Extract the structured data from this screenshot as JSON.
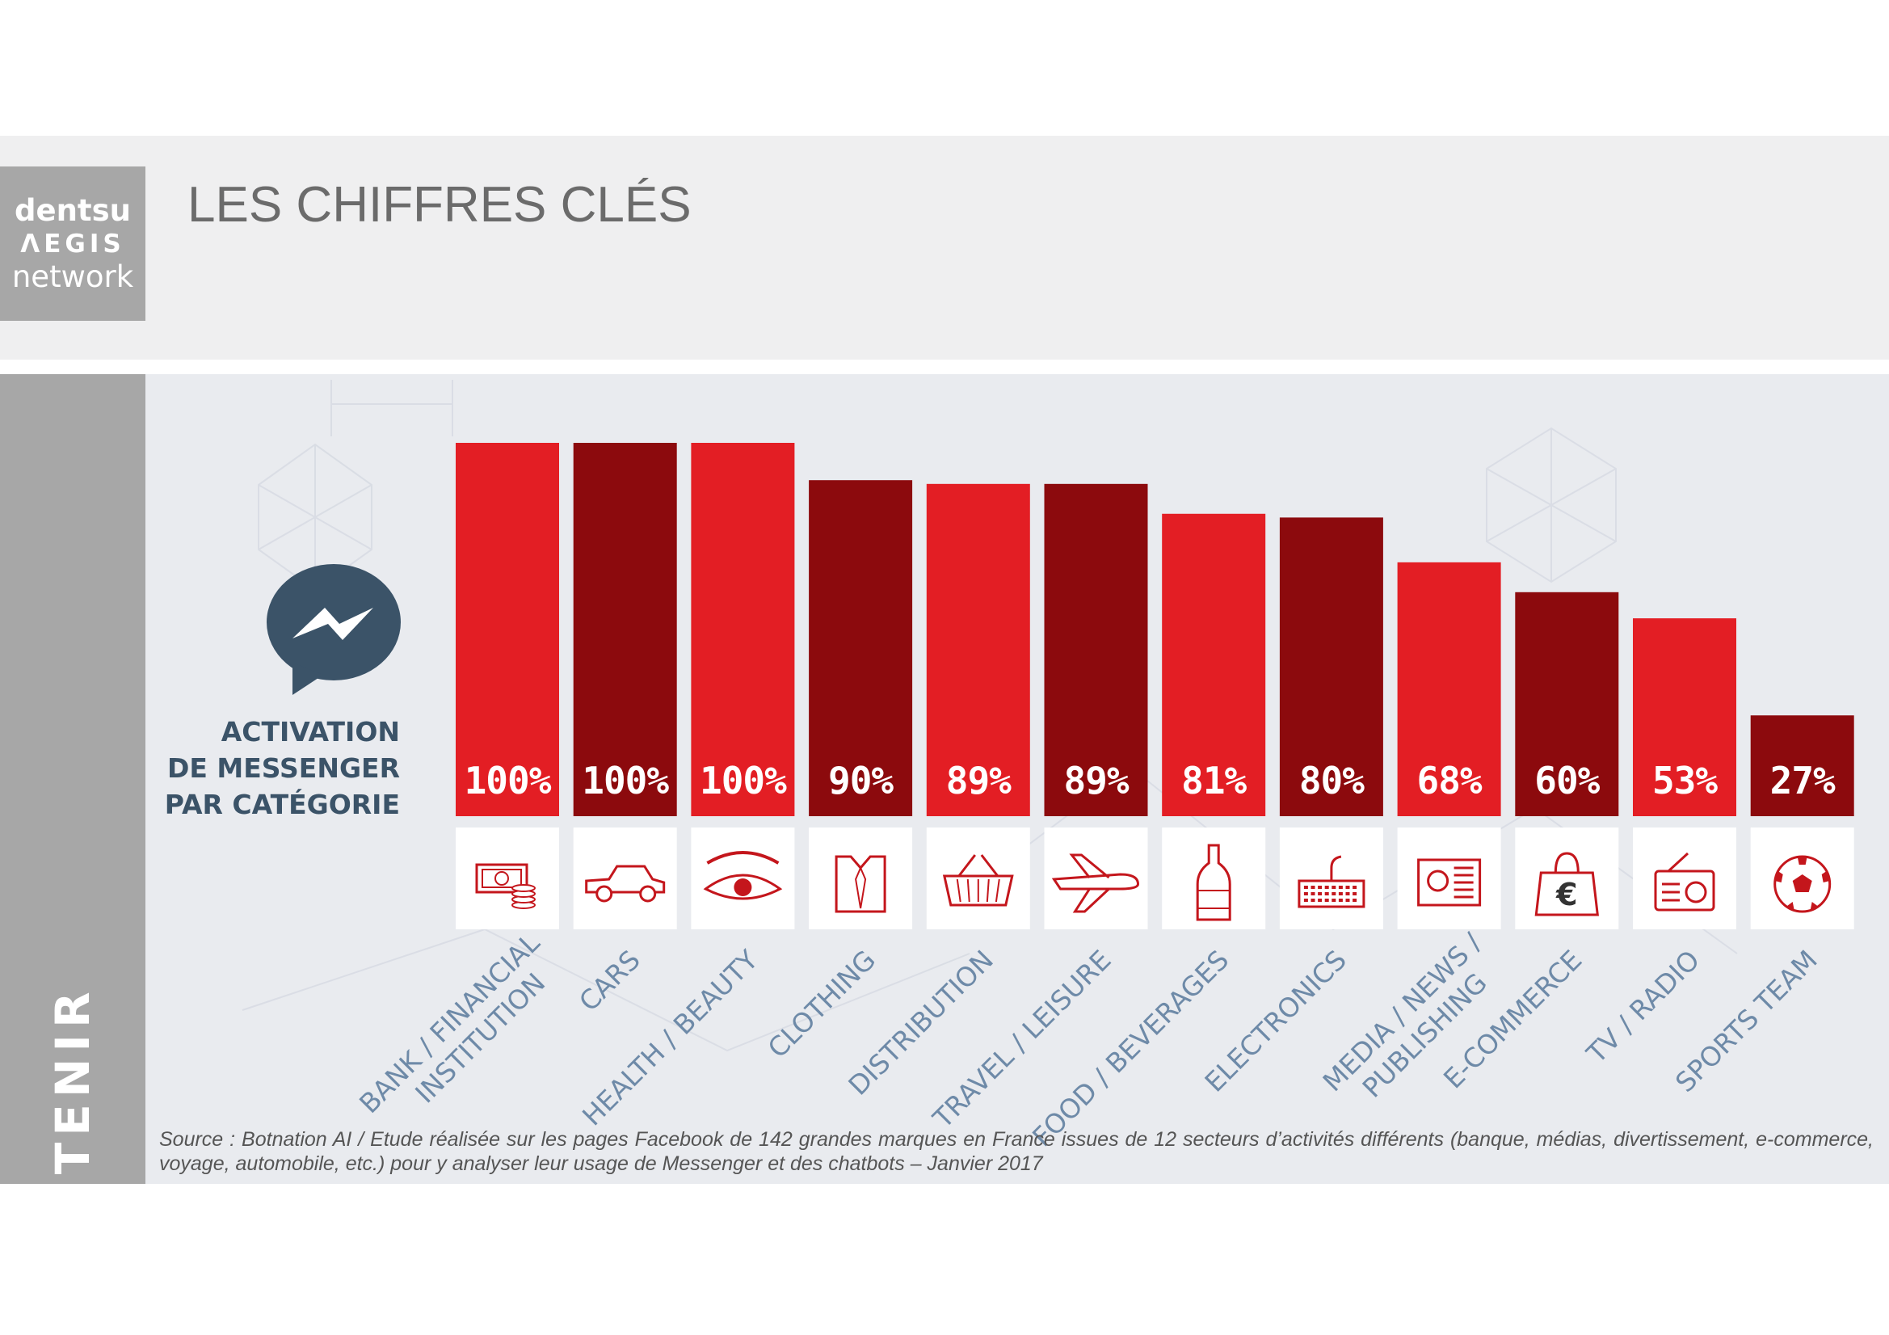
{
  "logo": {
    "line1": "dentsu",
    "line2": "ΛEGIS",
    "line3": "network"
  },
  "page_title": "LES CHIFFRES CLÉS",
  "side_label": "À RETENIR",
  "chart_caption": [
    "ACTIVATION",
    "DE MESSENGER",
    "PAR CATÉGORIE"
  ],
  "source_note": "Source : Botnation AI / Etude réalisée sur les pages Facebook de 142 grandes marques en France issues de 12 secteurs d’activités différents (banque, médias, divertissement, e-commerce, voyage, automobile, etc.) pour y analyser leur usage de Messenger et des chatbots – Janvier 2017",
  "colors": {
    "bright_red": "#e31e24",
    "dark_red": "#8c0a0d",
    "slate_blue": "#3b5368",
    "label_blue": "#6e8aa8"
  },
  "chart_data": {
    "type": "bar",
    "categories": [
      "BANK / FINANCIAL INSTITUTION",
      "CARS",
      "HEALTH / BEAUTY",
      "CLOTHING",
      "DISTRIBUTION",
      "TRAVEL / LEISURE",
      "FOOD / BEVERAGES",
      "ELECTRONICS",
      "MEDIA / NEWS / PUBLISHING",
      "E-COMMERCE",
      "TV / RADIO",
      "SPORTS TEAM"
    ],
    "category_lines": [
      [
        "BANK / FINANCIAL",
        "INSTITUTION"
      ],
      [
        "CARS"
      ],
      [
        "HEALTH / BEAUTY"
      ],
      [
        "CLOTHING"
      ],
      [
        "DISTRIBUTION"
      ],
      [
        "TRAVEL / LEISURE"
      ],
      [
        "FOOD / BEVERAGES"
      ],
      [
        "ELECTRONICS"
      ],
      [
        "MEDIA / NEWS /",
        "PUBLISHING"
      ],
      [
        "E-COMMERCE"
      ],
      [
        "TV / RADIO"
      ],
      [
        "SPORTS TEAM"
      ]
    ],
    "values": [
      100,
      100,
      100,
      90,
      89,
      89,
      81,
      80,
      68,
      60,
      53,
      27
    ],
    "value_labels": [
      "100%",
      "100%",
      "100%",
      "90%",
      "89%",
      "89%",
      "81%",
      "80%",
      "68%",
      "60%",
      "53%",
      "27%"
    ],
    "icons": [
      "money-icon",
      "car-icon",
      "eye-icon",
      "shirt-icon",
      "basket-icon",
      "plane-icon",
      "bottle-icon",
      "keyboard-icon",
      "newspaper-icon",
      "euro-bag-icon",
      "radio-icon",
      "soccer-ball-icon"
    ],
    "bar_colors": [
      "#e31e24",
      "#8c0a0d",
      "#e31e24",
      "#8c0a0d",
      "#e31e24",
      "#8c0a0d",
      "#e31e24",
      "#8c0a0d",
      "#e31e24",
      "#8c0a0d",
      "#e31e24",
      "#8c0a0d"
    ],
    "ylim": [
      0,
      100
    ],
    "grid": false
  }
}
